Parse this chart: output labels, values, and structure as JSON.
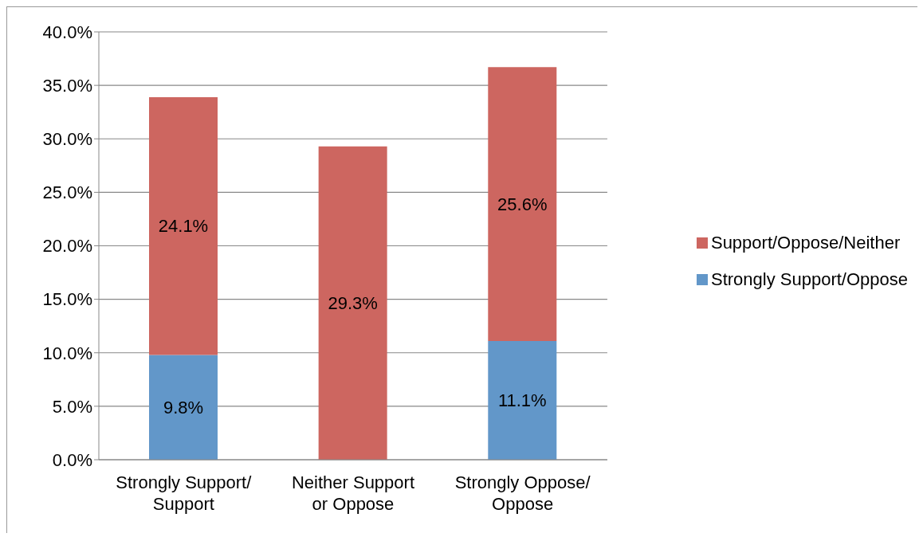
{
  "chart_data": {
    "type": "bar",
    "stacked": true,
    "categories": [
      "Strongly Support/ Support",
      "Neither Support or Oppose",
      "Strongly Oppose/ Oppose"
    ],
    "series": [
      {
        "name": "Strongly Support/Oppose",
        "color": "#6297c9",
        "values": [
          9.8,
          null,
          11.1
        ],
        "value_labels": [
          "9.8%",
          null,
          "11.1%"
        ]
      },
      {
        "name": "Support/Oppose/Neither",
        "color": "#cd6660",
        "values": [
          24.1,
          29.3,
          25.6
        ],
        "value_labels": [
          "24.1%",
          "29.3%",
          "25.6%"
        ]
      }
    ],
    "ylim": [
      0,
      40
    ],
    "yticks": [
      {
        "value": 0,
        "label": "0.0%"
      },
      {
        "value": 5,
        "label": "5.0%"
      },
      {
        "value": 10,
        "label": "10.0%"
      },
      {
        "value": 15,
        "label": "15.0%"
      },
      {
        "value": 20,
        "label": "20.0%"
      },
      {
        "value": 25,
        "label": "25.0%"
      },
      {
        "value": 30,
        "label": "30.0%"
      },
      {
        "value": 35,
        "label": "35.0%"
      },
      {
        "value": 40,
        "label": "40.0%"
      }
    ],
    "grid": "y",
    "legend": "right"
  }
}
